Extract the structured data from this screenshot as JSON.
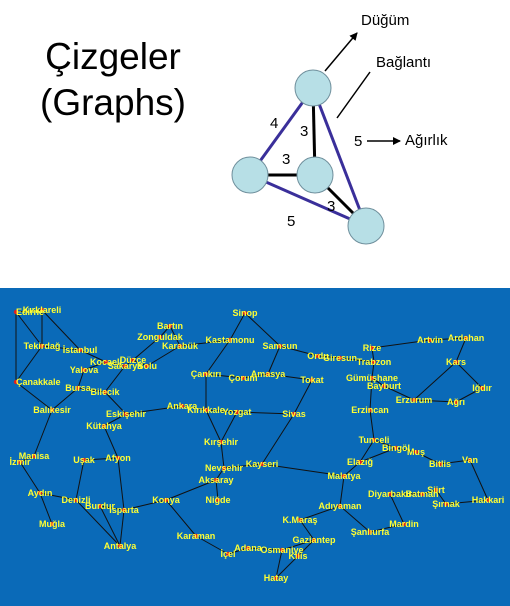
{
  "title": {
    "line1": "Çizgeler",
    "line2": "(Graphs)"
  },
  "graph": {
    "labels": {
      "node": "Düğüm",
      "edge": "Bağlantı",
      "weight": "Ağırlık"
    },
    "weight_example": "5",
    "edges": [
      {
        "from": "A",
        "to": "B",
        "weight": "4",
        "color": "#3a2f9a"
      },
      {
        "from": "A",
        "to": "C",
        "weight": "3",
        "color": "#000000"
      },
      {
        "from": "B",
        "to": "C",
        "weight": "3",
        "color": "#000000"
      },
      {
        "from": "C",
        "to": "D",
        "weight": "3",
        "color": "#000000"
      },
      {
        "from": "B",
        "to": "D",
        "weight": "5",
        "color": "#3a2f9a"
      },
      {
        "from": "A",
        "to": "D",
        "weight": "5",
        "color": "#3a2f9a"
      }
    ],
    "node_color": "#b7dfe6"
  },
  "map": {
    "background": "#0a6ab8",
    "label_color": "#ffff33",
    "cities": [
      "Edirne",
      "Kırklareli",
      "Tekirdağ",
      "İstanbul",
      "Kocaeli",
      "Sakarya",
      "Yalova",
      "Bilecik",
      "Bursa",
      "Düzce",
      "Bolu",
      "Çanakkale",
      "Balıkesir",
      "Eskişehir",
      "Kütahya",
      "Manisa",
      "İzmir",
      "Uşak",
      "Afyon",
      "Aydın",
      "Denizli",
      "Burdur",
      "Isparta",
      "Muğla",
      "Antalya",
      "Bartın",
      "Zonguldak",
      "Karabük",
      "Kastamonu",
      "Sinop",
      "Samsun",
      "Ordu",
      "Giresun",
      "Rize",
      "Trabzon",
      "Artvin",
      "Ardahan",
      "Kars",
      "Iğdır",
      "Ağrı",
      "Erzurum",
      "Bayburt",
      "Gümüşhane",
      "Erzincan",
      "Çankırı",
      "Çorum",
      "Amasya",
      "Tokat",
      "Ankara",
      "Kırıkkale",
      "Yozgat",
      "Kırşehir",
      "Sivas",
      "Tunceli",
      "Bingöl",
      "Muş",
      "Bitlis",
      "Van",
      "Hakkari",
      "Şırnak",
      "Siirt",
      "Batman",
      "Diyarbakır",
      "Mardin",
      "Elazığ",
      "Malatya",
      "Adıyaman",
      "Şanlıurfa",
      "Gaziantep",
      "Kilis",
      "Osmaniye",
      "Adana",
      "Hatay",
      "İçel",
      "Karaman",
      "Konya",
      "Niğde",
      "Aksaray",
      "Nevşehir",
      "Kayseri",
      "K.Maraş"
    ]
  }
}
